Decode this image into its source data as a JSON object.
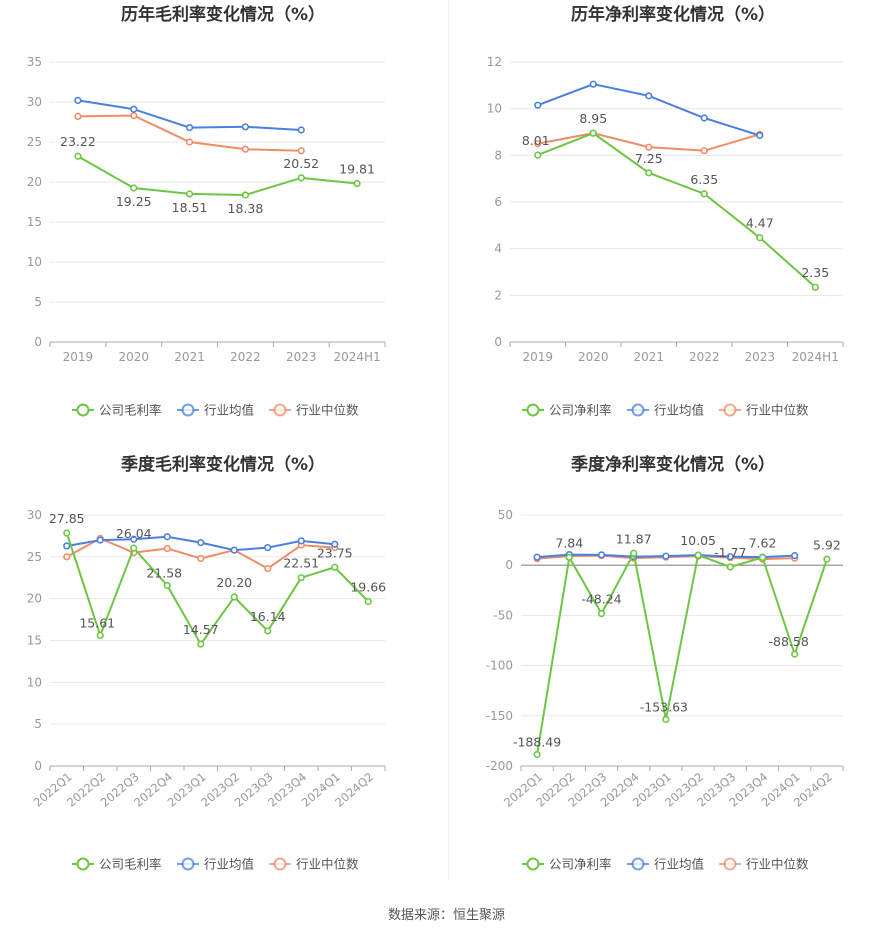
{
  "source": "数据来源：恒生聚源",
  "colors": {
    "company": "#6cc644",
    "avg": "#4a7fe0",
    "median": "#f28b65",
    "axis": "#999999",
    "grid": "#e8e8e8",
    "label": "#555555"
  },
  "chart_data": [
    {
      "type": "line",
      "title": "历年毛利率变化情况（%）",
      "categories": [
        "2019",
        "2020",
        "2021",
        "2022",
        "2023",
        "2024H1"
      ],
      "ylim": [
        0,
        35
      ],
      "yticks": [
        0,
        5,
        10,
        15,
        20,
        25,
        30,
        35
      ],
      "series": [
        {
          "name": "公司毛利率",
          "color": "#6cc644",
          "values": [
            23.22,
            19.25,
            18.51,
            18.38,
            20.52,
            19.81
          ],
          "labels": [
            "23.22",
            "19.25",
            "18.51",
            "18.38",
            "20.52",
            "19.81"
          ]
        },
        {
          "name": "行业均值",
          "color": "#4a7fe0",
          "values": [
            30.2,
            29.1,
            26.8,
            26.9,
            26.5,
            null
          ]
        },
        {
          "name": "行业中位数",
          "color": "#f28b65",
          "values": [
            28.2,
            28.3,
            25.0,
            24.1,
            23.9,
            null
          ]
        }
      ],
      "rotate_x": false,
      "grid": true,
      "legend_position": "bottom"
    },
    {
      "type": "line",
      "title": "历年净利率变化情况（%）",
      "categories": [
        "2019",
        "2020",
        "2021",
        "2022",
        "2023",
        "2024H1"
      ],
      "ylim": [
        0,
        12
      ],
      "yticks": [
        0,
        2,
        4,
        6,
        8,
        10,
        12
      ],
      "series": [
        {
          "name": "公司净利率",
          "color": "#6cc644",
          "values": [
            8.01,
            8.95,
            7.25,
            6.35,
            4.47,
            2.35
          ],
          "labels": [
            "8.01",
            "8.95",
            "7.25",
            "6.35",
            "4.47",
            "2.35"
          ]
        },
        {
          "name": "行业均值",
          "color": "#4a7fe0",
          "values": [
            10.15,
            11.05,
            10.55,
            9.6,
            8.85,
            null
          ]
        },
        {
          "name": "行业中位数",
          "color": "#f28b65",
          "values": [
            8.5,
            8.95,
            8.35,
            8.2,
            8.9,
            null
          ]
        }
      ],
      "rotate_x": false,
      "grid": true,
      "legend_position": "bottom"
    },
    {
      "type": "line",
      "title": "季度毛利率变化情况（%）",
      "categories": [
        "2022Q1",
        "2022Q2",
        "2022Q3",
        "2022Q4",
        "2023Q1",
        "2023Q2",
        "2023Q3",
        "2023Q4",
        "2024Q1",
        "2024Q2"
      ],
      "ylim": [
        0,
        30
      ],
      "yticks": [
        0,
        5,
        10,
        15,
        20,
        25,
        30
      ],
      "series": [
        {
          "name": "公司毛利率",
          "color": "#6cc644",
          "values": [
            27.85,
            15.61,
            26.04,
            21.58,
            14.57,
            20.2,
            16.14,
            22.51,
            23.75,
            19.66
          ],
          "labels": [
            "27.85",
            "15.61",
            "26.04",
            "21.58",
            "14.57",
            "20.20",
            "16.14",
            "22.51",
            "23.75",
            "19.66"
          ]
        },
        {
          "name": "行业均值",
          "color": "#4a7fe0",
          "values": [
            26.3,
            27.0,
            27.1,
            27.4,
            26.7,
            25.8,
            26.1,
            26.9,
            26.5,
            null
          ]
        },
        {
          "name": "行业中位数",
          "color": "#f28b65",
          "values": [
            25.0,
            27.2,
            25.5,
            26.0,
            24.8,
            25.8,
            23.6,
            26.4,
            26.1,
            null
          ]
        }
      ],
      "rotate_x": true,
      "grid": true,
      "legend_position": "bottom"
    },
    {
      "type": "line",
      "title": "季度净利率变化情况（%）",
      "categories": [
        "2022Q1",
        "2022Q2",
        "2022Q3",
        "2022Q4",
        "2023Q1",
        "2023Q2",
        "2023Q3",
        "2023Q4",
        "2024Q1",
        "2024Q2"
      ],
      "ylim": [
        -200,
        50
      ],
      "yticks": [
        -200,
        -150,
        -100,
        -50,
        0,
        50
      ],
      "series": [
        {
          "name": "公司净利率",
          "color": "#6cc644",
          "values": [
            -188.49,
            7.84,
            -48.24,
            11.87,
            -153.63,
            10.05,
            -1.77,
            7.62,
            -88.58,
            5.92
          ],
          "labels": [
            "-188.49",
            "7.84",
            "-48.24",
            "11.87",
            "-153.63",
            "10.05",
            "-1.77",
            "7.62",
            "-88.58",
            "5.92"
          ]
        },
        {
          "name": "行业均值",
          "color": "#4a7fe0",
          "values": [
            8.0,
            10.5,
            10.3,
            8.5,
            9.0,
            10.0,
            8.5,
            8.0,
            9.5,
            null
          ]
        },
        {
          "name": "行业中位数",
          "color": "#f28b65",
          "values": [
            6.5,
            9.0,
            9.5,
            7.0,
            8.0,
            9.0,
            7.5,
            6.0,
            7.0,
            null
          ]
        }
      ],
      "rotate_x": true,
      "grid": true,
      "legend_position": "bottom"
    }
  ]
}
